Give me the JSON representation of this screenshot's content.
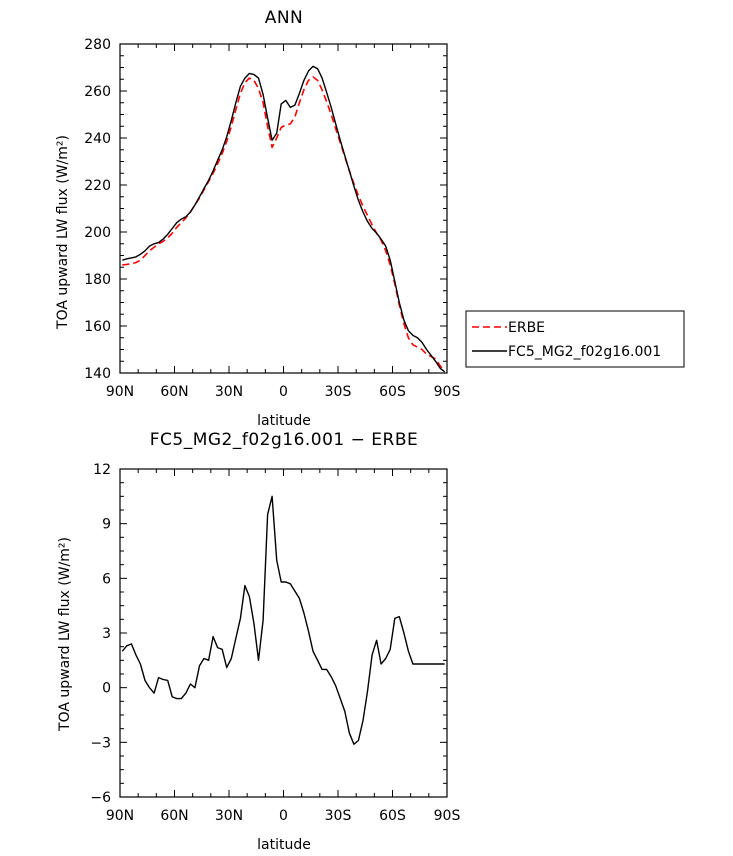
{
  "chart_data": [
    {
      "type": "line",
      "title": "ANN",
      "xlabel": "latitude",
      "ylabel": "TOA upward LW flux (W/m²)",
      "xlim": [
        90,
        -90
      ],
      "ylim": [
        140,
        280
      ],
      "xticks": [
        90,
        60,
        30,
        0,
        -30,
        -60,
        -90
      ],
      "xtick_labels": [
        "90N",
        "60N",
        "30N",
        "0",
        "30S",
        "60S",
        "90S"
      ],
      "yticks": [
        140,
        160,
        180,
        200,
        220,
        240,
        260,
        280
      ],
      "ytick_labels": [
        "140",
        "160",
        "180",
        "200",
        "220",
        "240",
        "260",
        "280"
      ],
      "legend": "right",
      "grid": false,
      "x": [
        88.75,
        86.25,
        83.75,
        81.25,
        78.75,
        76.25,
        73.75,
        71.25,
        68.75,
        66.25,
        63.75,
        61.25,
        58.75,
        56.25,
        53.75,
        51.25,
        48.75,
        46.25,
        43.75,
        41.25,
        38.75,
        36.25,
        33.75,
        31.25,
        28.75,
        26.25,
        23.75,
        21.25,
        18.75,
        16.25,
        13.75,
        11.25,
        8.75,
        6.25,
        3.75,
        1.25,
        -1.25,
        -3.75,
        -6.25,
        -8.75,
        -11.25,
        -13.75,
        -16.25,
        -18.75,
        -21.25,
        -23.75,
        -26.25,
        -28.75,
        -31.25,
        -33.75,
        -36.25,
        -38.75,
        -41.25,
        -43.75,
        -46.25,
        -48.75,
        -51.25,
        -53.75,
        -56.25,
        -58.75,
        -61.25,
        -63.75,
        -66.25,
        -68.75,
        -71.25,
        -73.75,
        -76.25,
        -78.75,
        -81.25,
        -83.75,
        -86.25,
        -88.75
      ],
      "series": [
        {
          "name": "ERBE",
          "color": "#ff0000",
          "dash": "dashed",
          "values": [
            186.0,
            186.2,
            186.5,
            187.0,
            188.0,
            190.0,
            192.0,
            193.5,
            195.0,
            196.0,
            197.5,
            199.5,
            202.0,
            204.0,
            206.0,
            208.5,
            211.5,
            214.5,
            218.0,
            221.5,
            225.0,
            229.0,
            233.5,
            238.5,
            245.0,
            252.0,
            259.0,
            263.5,
            265.5,
            264.5,
            261.0,
            255.0,
            245.0,
            236.0,
            240.0,
            244.5,
            245.5,
            246.0,
            249.0,
            255.0,
            260.5,
            264.5,
            266.0,
            264.5,
            260.5,
            255.5,
            250.0,
            244.0,
            238.0,
            232.0,
            226.0,
            220.5,
            215.5,
            211.0,
            207.0,
            203.0,
            199.5,
            196.5,
            192.0,
            186.0,
            178.0,
            169.0,
            161.0,
            155.0,
            152.0,
            151.0,
            150.0,
            148.0,
            147.0,
            146.0,
            143.0,
            141.0
          ]
        },
        {
          "name": "FC5_MG2_f02g16.001",
          "color": "#000000",
          "dash": "solid",
          "values": [
            188.0,
            188.6,
            189.0,
            189.4,
            190.5,
            192.0,
            194.0,
            195.0,
            195.5,
            197.0,
            199.0,
            201.5,
            204.0,
            205.5,
            206.5,
            208.5,
            211.5,
            215.0,
            218.5,
            222.0,
            226.0,
            230.5,
            235.0,
            240.5,
            247.5,
            255.0,
            262.0,
            265.5,
            267.5,
            267.0,
            265.5,
            258.5,
            248.5,
            239.0,
            242.0,
            254.5,
            256.0,
            253.0,
            254.0,
            259.0,
            264.5,
            268.5,
            270.5,
            269.5,
            265.5,
            259.5,
            253.0,
            246.0,
            239.0,
            232.5,
            226.0,
            219.5,
            213.5,
            208.5,
            204.5,
            201.5,
            199.5,
            197.0,
            194.0,
            188.0,
            179.0,
            170.0,
            162.5,
            158.0,
            156.0,
            155.0,
            153.0,
            150.0,
            147.5,
            145.0,
            142.0,
            140.5
          ]
        }
      ]
    },
    {
      "type": "line",
      "title": "FC5_MG2_f02g16.001  −  ERBE",
      "xlabel": "latitude",
      "ylabel": "TOA upward LW flux (W/m²)",
      "xlim": [
        90,
        -90
      ],
      "ylim": [
        -6,
        12
      ],
      "xticks": [
        90,
        60,
        30,
        0,
        -30,
        -60,
        -90
      ],
      "xtick_labels": [
        "90N",
        "60N",
        "30N",
        "0",
        "30S",
        "60S",
        "90S"
      ],
      "yticks": [
        -6,
        -3,
        0,
        3,
        6,
        9,
        12
      ],
      "ytick_labels": [
        "−6",
        "−3",
        "0",
        "3",
        "6",
        "9",
        "12"
      ],
      "grid": false,
      "x": [
        88.75,
        86.25,
        83.75,
        81.25,
        78.75,
        76.25,
        73.75,
        71.25,
        68.75,
        66.25,
        63.75,
        61.25,
        58.75,
        56.25,
        53.75,
        51.25,
        48.75,
        46.25,
        43.75,
        41.25,
        38.75,
        36.25,
        33.75,
        31.25,
        28.75,
        26.25,
        23.75,
        21.25,
        18.75,
        16.25,
        13.75,
        11.25,
        8.75,
        6.25,
        3.75,
        1.25,
        -1.25,
        -3.75,
        -6.25,
        -8.75,
        -11.25,
        -13.75,
        -16.25,
        -18.75,
        -21.25,
        -23.75,
        -26.25,
        -28.75,
        -31.25,
        -33.75,
        -36.25,
        -38.75,
        -41.25,
        -43.75,
        -46.25,
        -48.75,
        -51.25,
        -53.75,
        -56.25,
        -58.75,
        -61.25,
        -63.75,
        -66.25,
        -68.75,
        -71.25,
        -73.75,
        -76.25,
        -78.75,
        -81.25,
        -83.75,
        -86.25,
        -88.75
      ],
      "series": [
        {
          "name": "",
          "color": "#000000",
          "values": [
            2.0,
            2.3,
            2.4,
            1.8,
            1.3,
            0.4,
            0.0,
            -0.3,
            0.55,
            0.45,
            0.4,
            -0.5,
            -0.6,
            -0.6,
            -0.3,
            0.2,
            0.0,
            1.2,
            1.6,
            1.5,
            2.8,
            2.2,
            2.1,
            1.1,
            1.6,
            2.7,
            3.8,
            5.6,
            5.0,
            3.5,
            1.5,
            3.7,
            9.5,
            10.5,
            7.0,
            5.8,
            5.8,
            5.7,
            5.3,
            4.9,
            4.1,
            3.1,
            2.0,
            1.5,
            1.0,
            1.0,
            0.6,
            0.1,
            -0.6,
            -1.3,
            -2.5,
            -3.1,
            -2.9,
            -1.8,
            -0.2,
            1.8,
            2.6,
            1.3,
            1.6,
            2.1,
            3.8,
            3.9,
            3.0,
            2.0,
            1.3,
            1.3,
            1.3,
            1.3,
            1.3,
            1.3,
            1.3,
            1.3
          ]
        }
      ]
    }
  ]
}
